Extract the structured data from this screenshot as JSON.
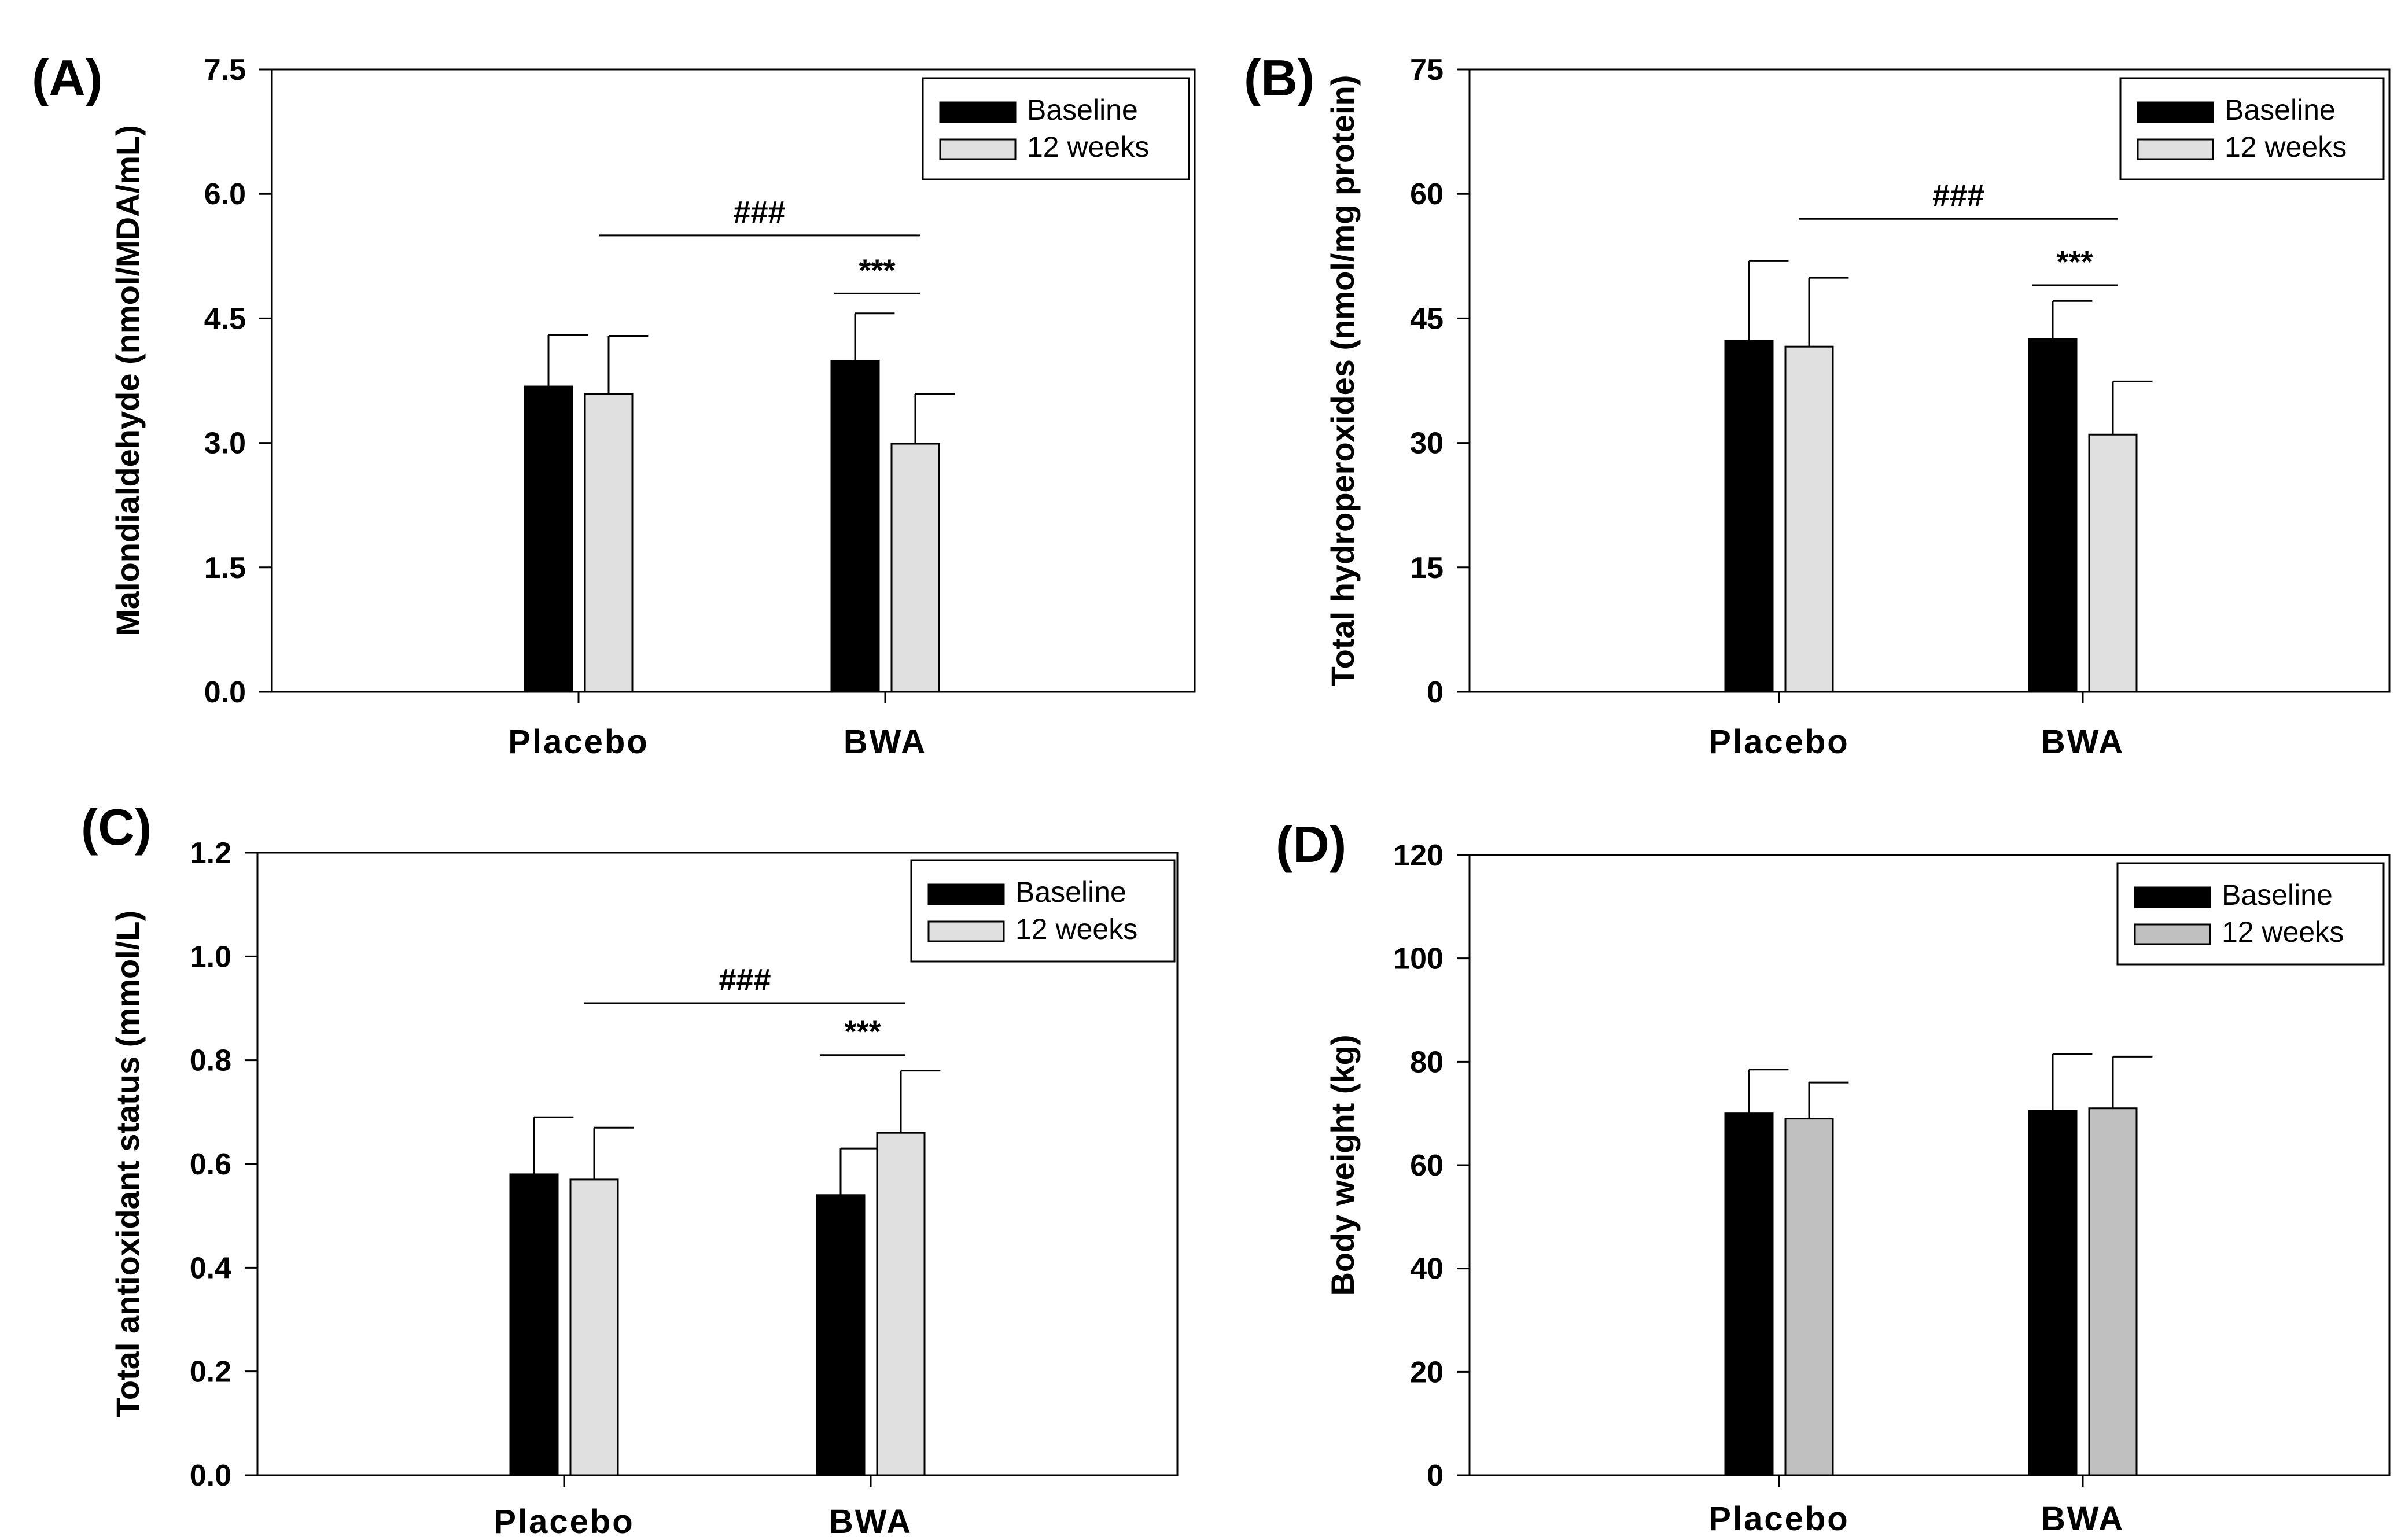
{
  "chart_data": [
    {
      "type": "bar",
      "panel": "(A)",
      "categories": [
        "Placebo",
        "BWA"
      ],
      "series": [
        {
          "name": "Baseline",
          "values": [
            3.68,
            3.99
          ],
          "errors": [
            0.62,
            0.57
          ],
          "color": "#000000"
        },
        {
          "name": "12 weeks",
          "values": [
            3.59,
            2.99
          ],
          "errors": [
            0.7,
            0.6
          ],
          "color": "#e0e0e0"
        }
      ],
      "ylabel": "Malondialdehyde (nmol/MDA/mL)",
      "ylim": [
        0,
        7.5
      ],
      "yticks": [
        "0.0",
        "1.5",
        "3.0",
        "4.5",
        "6.0",
        "7.5"
      ],
      "legend": "top-right",
      "annotations": [
        {
          "text": "###",
          "type": "between-groups",
          "value": 5.5
        },
        {
          "text": "***",
          "type": "within-bwa",
          "value": 4.8
        }
      ]
    },
    {
      "type": "bar",
      "panel": "(B)",
      "categories": [
        "Placebo",
        "BWA"
      ],
      "series": [
        {
          "name": "Baseline",
          "values": [
            42.3,
            42.5
          ],
          "errors": [
            9.6,
            4.6
          ],
          "color": "#000000"
        },
        {
          "name": "12 weeks",
          "values": [
            41.6,
            31.0
          ],
          "errors": [
            8.3,
            6.4
          ],
          "color": "#e0e0e0"
        }
      ],
      "ylabel": "Total hydroperoxides (nmol/mg protein)",
      "ylim": [
        0,
        75
      ],
      "yticks": [
        "0",
        "15",
        "30",
        "45",
        "60",
        "75"
      ],
      "legend": "top-right",
      "annotations": [
        {
          "text": "###",
          "type": "between-groups",
          "value": 57
        },
        {
          "text": "***",
          "type": "within-bwa",
          "value": 49
        }
      ]
    },
    {
      "type": "bar",
      "panel": "(C)",
      "categories": [
        "Placebo",
        "BWA"
      ],
      "series": [
        {
          "name": "Baseline",
          "values": [
            0.58,
            0.54
          ],
          "errors": [
            0.11,
            0.09
          ],
          "color": "#000000"
        },
        {
          "name": "12 weeks",
          "values": [
            0.57,
            0.66
          ],
          "errors": [
            0.1,
            0.12
          ],
          "color": "#e0e0e0"
        }
      ],
      "ylabel": "Total antioxidant status (mmol/L)",
      "ylim": [
        0,
        1.2
      ],
      "yticks": [
        "0.0",
        "0.2",
        "0.4",
        "0.6",
        "0.8",
        "1.0",
        "1.2"
      ],
      "legend": "top-right",
      "annotations": [
        {
          "text": "###",
          "type": "between-groups",
          "value": 0.91
        },
        {
          "text": "***",
          "type": "within-bwa",
          "value": 0.81
        }
      ]
    },
    {
      "type": "bar",
      "panel": "(D)",
      "categories": [
        "Placebo",
        "BWA"
      ],
      "series": [
        {
          "name": "Baseline",
          "values": [
            70.0,
            70.5
          ],
          "errors": [
            8.5,
            11.0
          ],
          "color": "#000000"
        },
        {
          "name": "12 weeks",
          "values": [
            69.0,
            71.0
          ],
          "errors": [
            7.0,
            10.0
          ],
          "color": "#c0c0c0"
        }
      ],
      "ylabel": "Body weight (kg)",
      "ylim": [
        0,
        120
      ],
      "yticks": [
        "0",
        "20",
        "40",
        "60",
        "80",
        "100",
        "120"
      ],
      "legend": "top-right",
      "annotations": []
    }
  ]
}
